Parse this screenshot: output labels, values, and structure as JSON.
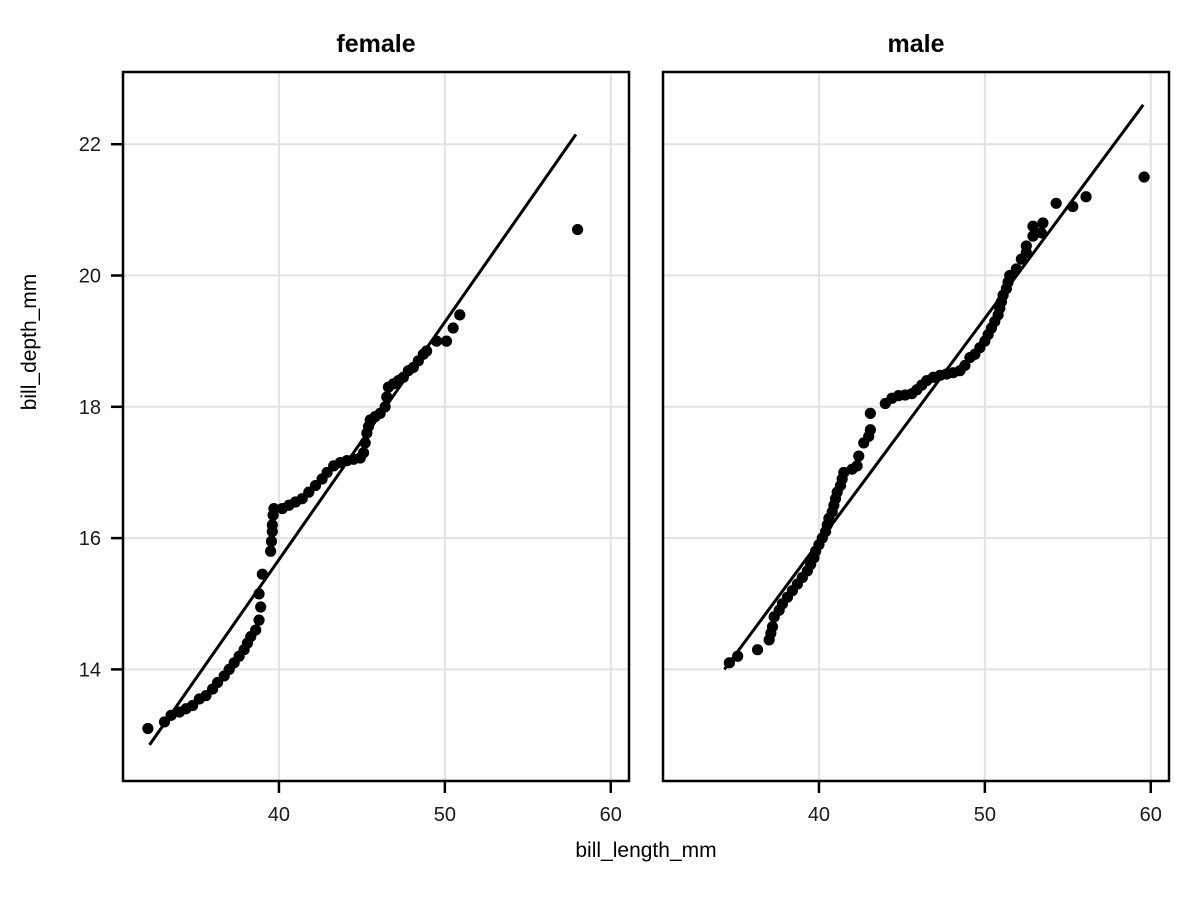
{
  "chart_data": {
    "type": "scatter",
    "subtype": "qq-plot",
    "xlabel": "bill_length_mm",
    "ylabel": "bill_depth_mm",
    "xlim": [
      30.6,
      61.1
    ],
    "ylim": [
      12.3,
      23.1
    ],
    "x_ticks": [
      40,
      50,
      60
    ],
    "y_ticks": [
      14,
      16,
      18,
      20,
      22
    ],
    "grid": true,
    "legend": "none",
    "facets": [
      {
        "label": "female",
        "line": {
          "x1": 32.2,
          "y1": 12.85,
          "x2": 57.9,
          "y2": 22.15
        },
        "points": [
          [
            32.1,
            13.1
          ],
          [
            33.1,
            13.2
          ],
          [
            33.5,
            13.3
          ],
          [
            34.0,
            13.35
          ],
          [
            34.4,
            13.4
          ],
          [
            34.8,
            13.45
          ],
          [
            35.2,
            13.55
          ],
          [
            35.6,
            13.6
          ],
          [
            36.0,
            13.7
          ],
          [
            36.3,
            13.8
          ],
          [
            36.7,
            13.9
          ],
          [
            37.0,
            14.0
          ],
          [
            37.3,
            14.1
          ],
          [
            37.6,
            14.2
          ],
          [
            37.9,
            14.3
          ],
          [
            38.1,
            14.4
          ],
          [
            38.3,
            14.5
          ],
          [
            38.6,
            14.6
          ],
          [
            38.8,
            14.75
          ],
          [
            38.9,
            14.95
          ],
          [
            38.8,
            15.15
          ],
          [
            39.0,
            15.45
          ],
          [
            39.5,
            15.8
          ],
          [
            39.55,
            15.95
          ],
          [
            39.6,
            16.1
          ],
          [
            39.6,
            16.2
          ],
          [
            39.65,
            16.35
          ],
          [
            39.7,
            16.45
          ],
          [
            40.2,
            16.45
          ],
          [
            40.6,
            16.5
          ],
          [
            41.0,
            16.55
          ],
          [
            41.4,
            16.6
          ],
          [
            41.8,
            16.7
          ],
          [
            42.2,
            16.8
          ],
          [
            42.6,
            16.9
          ],
          [
            42.9,
            17.0
          ],
          [
            43.3,
            17.1
          ],
          [
            43.7,
            17.15
          ],
          [
            44.1,
            17.18
          ],
          [
            44.5,
            17.2
          ],
          [
            44.9,
            17.22
          ],
          [
            45.1,
            17.3
          ],
          [
            45.2,
            17.45
          ],
          [
            45.3,
            17.6
          ],
          [
            45.4,
            17.7
          ],
          [
            45.5,
            17.8
          ],
          [
            45.8,
            17.85
          ],
          [
            46.1,
            17.9
          ],
          [
            46.4,
            18.0
          ],
          [
            46.5,
            18.15
          ],
          [
            46.6,
            18.3
          ],
          [
            46.9,
            18.35
          ],
          [
            47.2,
            18.4
          ],
          [
            47.5,
            18.45
          ],
          [
            47.8,
            18.55
          ],
          [
            48.1,
            18.6
          ],
          [
            48.4,
            18.7
          ],
          [
            48.7,
            18.8
          ],
          [
            48.9,
            18.85
          ],
          [
            49.5,
            19.0
          ],
          [
            50.1,
            19.0
          ],
          [
            50.5,
            19.2
          ],
          [
            50.9,
            19.4
          ],
          [
            58.0,
            20.7
          ]
        ]
      },
      {
        "label": "male",
        "line": {
          "x1": 34.3,
          "y1": 14.0,
          "x2": 59.55,
          "y2": 22.6
        },
        "points": [
          [
            34.6,
            14.1
          ],
          [
            35.1,
            14.2
          ],
          [
            36.3,
            14.3
          ],
          [
            37.0,
            14.45
          ],
          [
            37.1,
            14.55
          ],
          [
            37.2,
            14.65
          ],
          [
            37.3,
            14.8
          ],
          [
            37.6,
            14.9
          ],
          [
            37.8,
            15.0
          ],
          [
            38.1,
            15.1
          ],
          [
            38.4,
            15.2
          ],
          [
            38.7,
            15.3
          ],
          [
            39.0,
            15.4
          ],
          [
            39.3,
            15.5
          ],
          [
            39.5,
            15.6
          ],
          [
            39.7,
            15.7
          ],
          [
            39.8,
            15.8
          ],
          [
            40.0,
            15.9
          ],
          [
            40.2,
            16.0
          ],
          [
            40.4,
            16.1
          ],
          [
            40.5,
            16.2
          ],
          [
            40.6,
            16.3
          ],
          [
            40.8,
            16.4
          ],
          [
            40.9,
            16.5
          ],
          [
            41.0,
            16.6
          ],
          [
            41.1,
            16.7
          ],
          [
            41.3,
            16.8
          ],
          [
            41.4,
            16.9
          ],
          [
            41.5,
            17.0
          ],
          [
            42.0,
            17.05
          ],
          [
            42.3,
            17.1
          ],
          [
            42.4,
            17.25
          ],
          [
            42.7,
            17.45
          ],
          [
            43.0,
            17.55
          ],
          [
            43.1,
            17.65
          ],
          [
            43.1,
            17.9
          ],
          [
            44.0,
            18.05
          ],
          [
            44.4,
            18.13
          ],
          [
            44.8,
            18.17
          ],
          [
            45.2,
            18.18
          ],
          [
            45.6,
            18.2
          ],
          [
            45.9,
            18.26
          ],
          [
            46.2,
            18.33
          ],
          [
            46.5,
            18.4
          ],
          [
            46.9,
            18.45
          ],
          [
            47.3,
            18.48
          ],
          [
            47.7,
            18.5
          ],
          [
            48.1,
            18.52
          ],
          [
            48.5,
            18.55
          ],
          [
            48.8,
            18.63
          ],
          [
            49.1,
            18.75
          ],
          [
            49.4,
            18.8
          ],
          [
            49.7,
            18.9
          ],
          [
            50.0,
            19.0
          ],
          [
            50.2,
            19.1
          ],
          [
            50.4,
            19.2
          ],
          [
            50.6,
            19.3
          ],
          [
            50.8,
            19.4
          ],
          [
            50.9,
            19.5
          ],
          [
            51.0,
            19.6
          ],
          [
            51.1,
            19.7
          ],
          [
            51.3,
            19.8
          ],
          [
            51.4,
            19.9
          ],
          [
            51.5,
            20.0
          ],
          [
            51.9,
            20.1
          ],
          [
            52.2,
            20.25
          ],
          [
            52.5,
            20.35
          ],
          [
            52.5,
            20.45
          ],
          [
            52.9,
            20.6
          ],
          [
            52.9,
            20.75
          ],
          [
            53.4,
            20.65
          ],
          [
            53.5,
            20.8
          ],
          [
            54.3,
            21.1
          ],
          [
            55.3,
            21.05
          ],
          [
            56.1,
            21.2
          ],
          [
            59.6,
            21.5
          ]
        ]
      }
    ]
  },
  "colors": {
    "background": "#ffffff",
    "point": "#000000",
    "line": "#000000",
    "grid": "#e2e2e2",
    "border": "#000000",
    "tick": "#000000",
    "text": "#1a1a1a"
  }
}
